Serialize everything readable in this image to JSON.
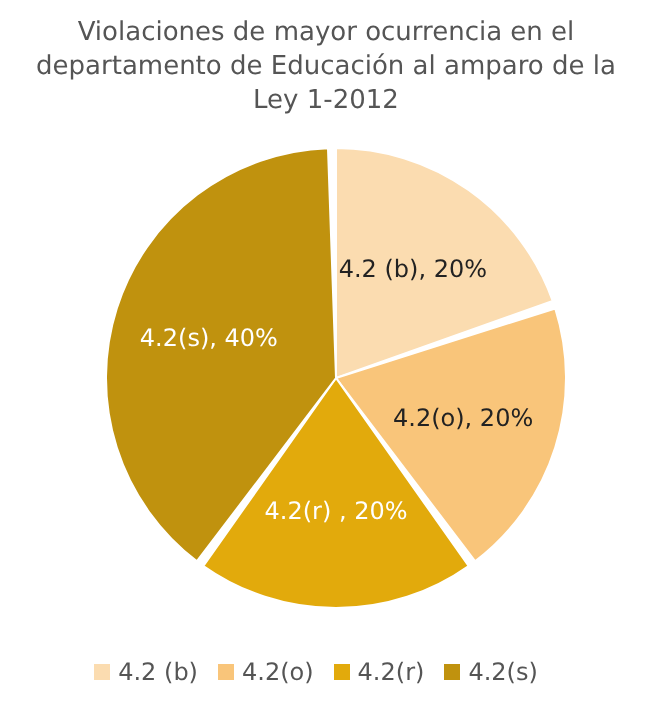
{
  "chart_data": {
    "type": "pie",
    "title": "Violaciones de mayor ocurrencia en el departamento de Educación al amparo de la Ley 1-2012",
    "categories": [
      "4.2 (b)",
      "4.2(o)",
      "4.2(r)",
      "4.2(s)"
    ],
    "values": [
      20,
      20,
      20,
      40
    ],
    "colors": [
      "#fbdcb0",
      "#f9c57a",
      "#e2aa0c",
      "#c0920e"
    ],
    "value_labels": [
      "4.2 (b), 20%",
      "4.2(o), 20%",
      "4.2(r) , 20%",
      "4.2(s), 40%"
    ],
    "legend": "bottom"
  }
}
